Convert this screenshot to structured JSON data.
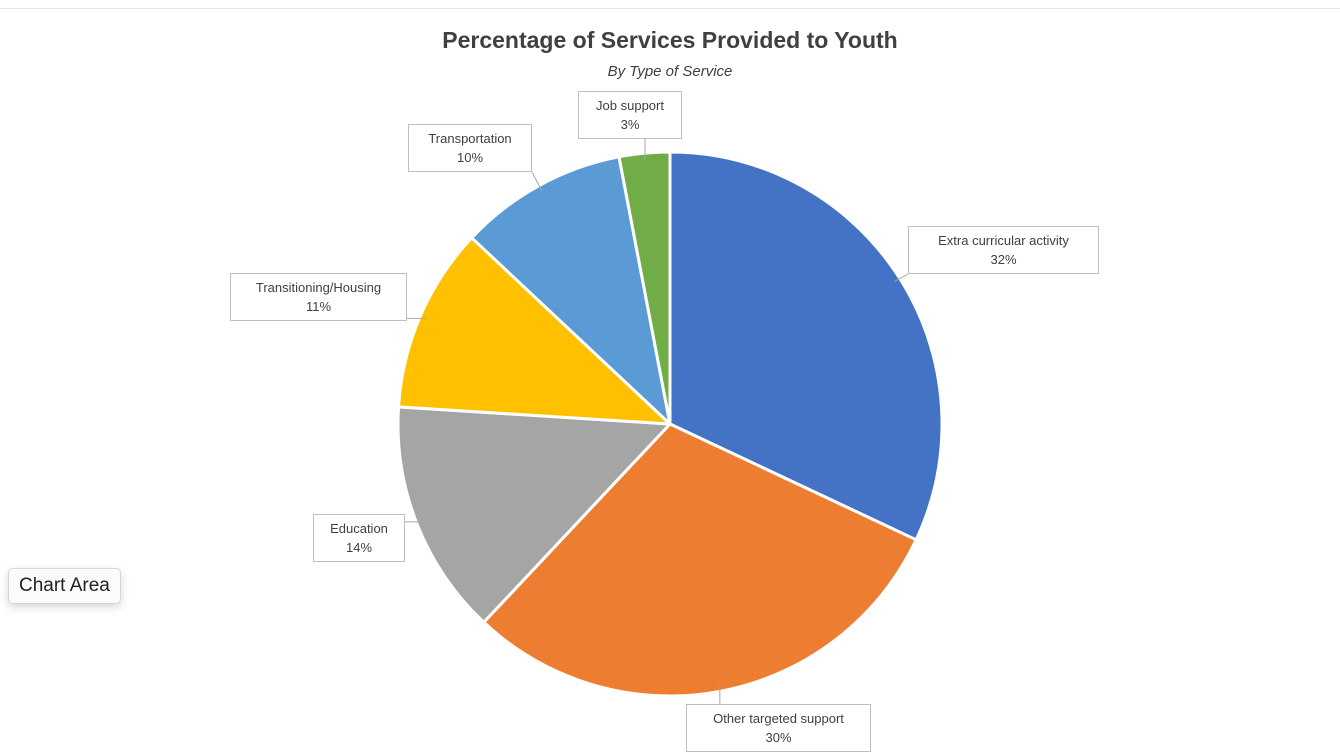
{
  "chart_data": {
    "type": "pie",
    "title": "Percentage of Services Provided to Youth",
    "subtitle": "By Type of Service",
    "slices": [
      {
        "label": "Extra curricular activity",
        "value": 32,
        "display": "32%",
        "color": "#4472C4"
      },
      {
        "label": "Other targeted support",
        "value": 30,
        "display": "30%",
        "color": "#ED7D31"
      },
      {
        "label": "Education",
        "value": 14,
        "display": "14%",
        "color": "#A5A5A5"
      },
      {
        "label": "Transitioning/Housing",
        "value": 11,
        "display": "11%",
        "color": "#FFC000"
      },
      {
        "label": "Transportation",
        "value": 10,
        "display": "10%",
        "color": "#5B9BD5"
      },
      {
        "label": "Job support",
        "value": 3,
        "display": "3%",
        "color": "#70AD47"
      }
    ],
    "start_angle": "12 o'clock",
    "direction": "clockwise",
    "legend": "none"
  },
  "tooltip": {
    "label": "Chart Area"
  }
}
